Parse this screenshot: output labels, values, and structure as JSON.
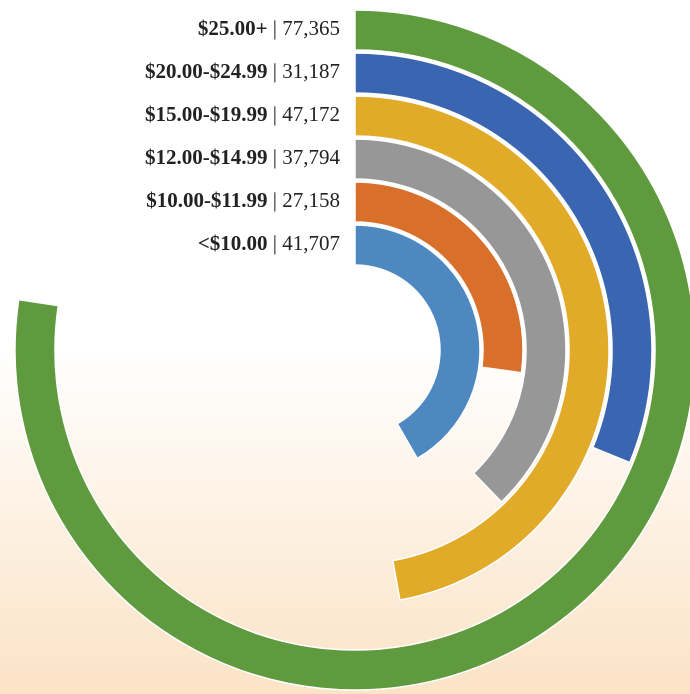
{
  "chart_data": {
    "type": "radial-bar",
    "categories": [
      "$25.00+",
      "$20.00-$24.99",
      "$15.00-$19.99",
      "$12.00-$14.99",
      "$10.00-$11.99",
      "<$10.00"
    ],
    "values": [
      77365,
      31187,
      47172,
      37794,
      27158,
      41707
    ],
    "value_labels": [
      "77,365",
      "31,187",
      "47,172",
      "37,794",
      "27,158",
      "41,707"
    ],
    "separator": "|",
    "colors": [
      "#5f9a3e",
      "#3a65b0",
      "#e1aa28",
      "#979797",
      "#d8702b",
      "#4e88c1"
    ],
    "ylim": [
      0,
      100000
    ]
  }
}
